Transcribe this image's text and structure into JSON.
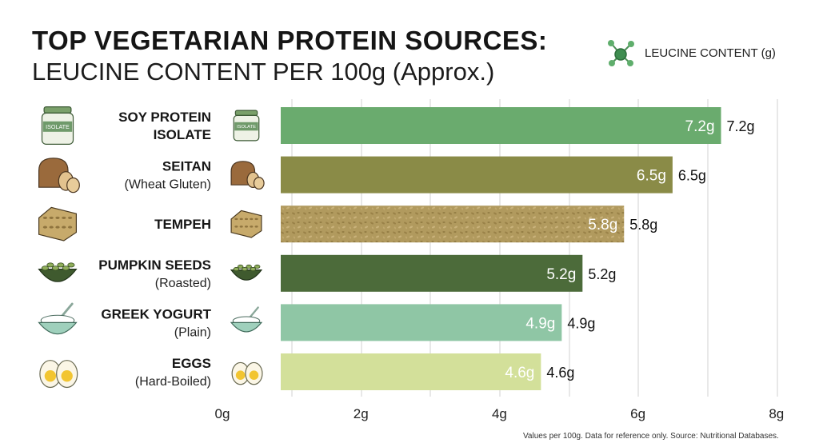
{
  "title_line1": "TOP VEGETARIAN PROTEIN SOURCES:",
  "title_line2": "LEUCINE CONTENT PER 100g (Approx.)",
  "legend": {
    "label": "LEUCINE CONTENT (g)",
    "icon": "molecule-icon",
    "color": "#3f8d50"
  },
  "footnote": "Values per 100g. Data for reference only. Source: Nutritional Databases.",
  "chart_data": {
    "type": "bar",
    "orientation": "horizontal",
    "categories": [
      {
        "name": "SOY PROTEIN",
        "name2": "ISOLATE",
        "sub": "",
        "icon": "protein-powder-jar-icon"
      },
      {
        "name": "SEITAN",
        "name2": "",
        "sub": "(Wheat Gluten)",
        "icon": "bread-loaf-icon"
      },
      {
        "name": "TEMPEH",
        "name2": "",
        "sub": "",
        "icon": "tempeh-block-icon"
      },
      {
        "name": "PUMPKIN SEEDS",
        "name2": "",
        "sub": "(Roasted)",
        "icon": "pumpkin-seeds-icon"
      },
      {
        "name": "GREEK YOGURT",
        "name2": "",
        "sub": "(Plain)",
        "icon": "yogurt-bowl-icon"
      },
      {
        "name": "EGGS",
        "name2": "",
        "sub": "(Hard-Boiled)",
        "icon": "boiled-egg-icon"
      }
    ],
    "values": [
      7.2,
      6.5,
      5.8,
      5.2,
      4.9,
      4.6
    ],
    "value_labels": [
      "7.2g",
      "6.5g",
      "5.8g",
      "5.2g",
      "4.9g",
      "4.6g"
    ],
    "bar_colors": [
      "#6aab6e",
      "#8a8b47",
      "#b19a5e",
      "#4c6b3a",
      "#8fc6a5",
      "#d3e09a"
    ],
    "x_ticks": [
      "0g",
      "2g",
      "4g",
      "6g",
      "8g"
    ],
    "xlim": [
      0,
      8
    ],
    "grid": true,
    "legend_position": "top-right"
  }
}
